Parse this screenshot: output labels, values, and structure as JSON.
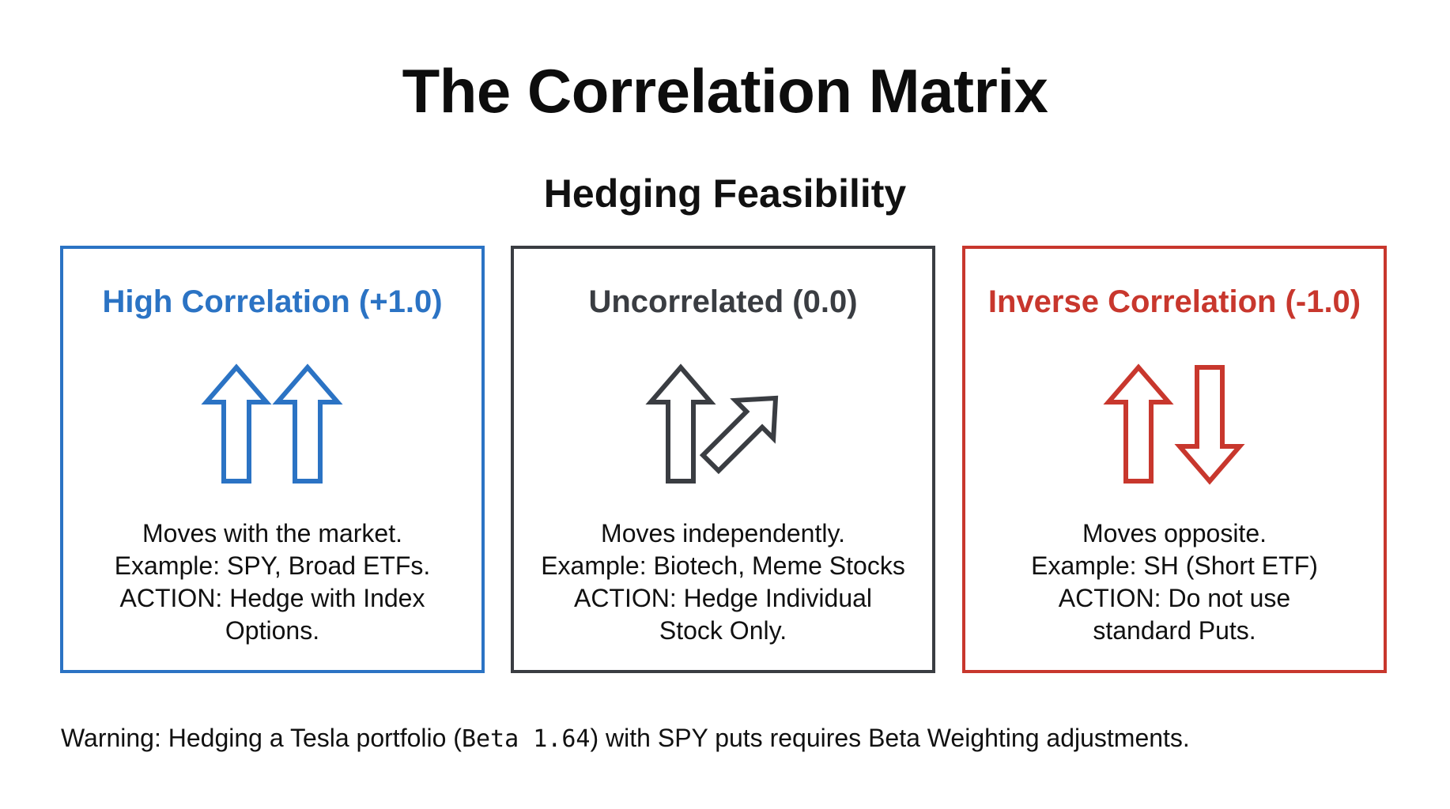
{
  "title": "The Correlation Matrix",
  "subtitle": "Hedging Feasibility",
  "colors": {
    "high": "#2b73c4",
    "uncorrelated": "#3a3d42",
    "inverse": "#c8372d"
  },
  "cards": {
    "high": {
      "title": "High Correlation (+1.0)",
      "icons": [
        "up-arrow-icon",
        "up-arrow-icon"
      ],
      "lines": [
        "Moves with the market.",
        "Example: SPY, Broad ETFs.",
        "ACTION: Hedge with Index",
        "Options."
      ]
    },
    "uncorrelated": {
      "title": "Uncorrelated (0.0)",
      "icons": [
        "up-arrow-icon",
        "diagonal-arrow-icon"
      ],
      "lines": [
        "Moves independently.",
        "Example: Biotech, Meme Stocks",
        "ACTION: Hedge Individual",
        "Stock Only."
      ]
    },
    "inverse": {
      "title": "Inverse Correlation (-1.0)",
      "icons": [
        "up-arrow-icon",
        "down-arrow-icon"
      ],
      "lines": [
        "Moves opposite.",
        "Example: SH (Short ETF)",
        "ACTION: Do not use",
        "standard Puts."
      ]
    }
  },
  "warning": {
    "prefix": "Warning: Hedging a Tesla portfolio (",
    "beta": "Beta 1.64",
    "suffix": ") with SPY puts requires Beta Weighting adjustments."
  }
}
